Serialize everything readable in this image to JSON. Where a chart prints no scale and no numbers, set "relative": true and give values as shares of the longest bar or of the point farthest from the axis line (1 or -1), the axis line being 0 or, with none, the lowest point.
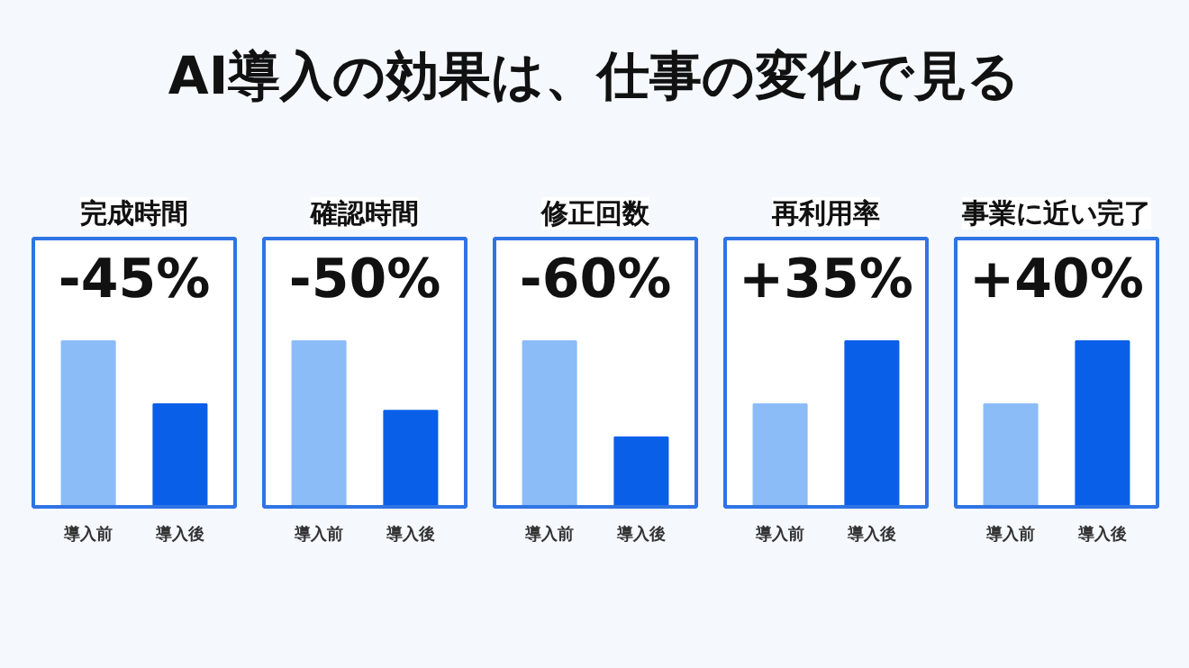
{
  "chart_data": [
    {
      "type": "other",
      "title": "AI導入の効果は、仕事の変化で見る"
    },
    {
      "type": "bar",
      "title": "完成時間",
      "annotations": [
        "-45%"
      ],
      "categories": [
        "導入前",
        "導入後"
      ],
      "values": [
        1,
        0.62
      ],
      "colors": [
        "#8cbcf8",
        "#0a5fe8"
      ],
      "relative": true
    },
    {
      "type": "bar",
      "title": "確認時間",
      "annotations": [
        "-50%"
      ],
      "categories": [
        "導入前",
        "導入後"
      ],
      "values": [
        1,
        0.58
      ],
      "colors": [
        "#8cbcf8",
        "#0a5fe8"
      ],
      "relative": true
    },
    {
      "type": "bar",
      "title": "修正回数",
      "annotations": [
        "-60%"
      ],
      "categories": [
        "導入前",
        "導入後"
      ],
      "values": [
        1,
        0.42
      ],
      "colors": [
        "#8cbcf8",
        "#0a5fe8"
      ],
      "relative": true
    },
    {
      "type": "bar",
      "title": "再利用率",
      "annotations": [
        "+35%"
      ],
      "categories": [
        "導入前",
        "導入後"
      ],
      "values": [
        0.62,
        1
      ],
      "colors": [
        "#8cbcf8",
        "#0a5fe8"
      ],
      "relative": true
    },
    {
      "type": "bar",
      "title": "事業に近い完了",
      "annotations": [
        "+40%"
      ],
      "categories": [
        "導入前",
        "導入後"
      ],
      "values": [
        0.62,
        1
      ],
      "colors": [
        "#8cbcf8",
        "#0a5fe8"
      ],
      "relative": true
    }
  ]
}
